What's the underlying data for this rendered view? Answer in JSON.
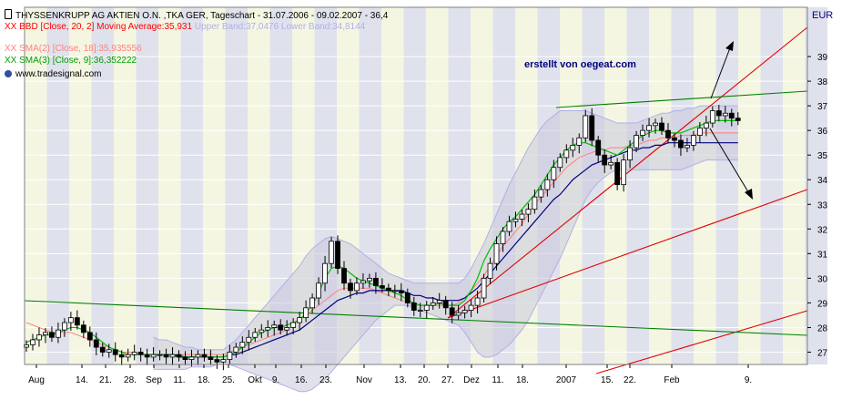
{
  "header": {
    "title": "THYSSENKRUPP AG AKTIEN O.N. ,TKA GER, Tageschart - 31.07.2006 - 09.02.2007 - 36,4",
    "bbd_label": "XX BBD [Close, 20, 2] Moving Average:35,931",
    "bbd_bands": "Upper Band:37,0476 Lower Band:34,8144",
    "sma2_label": "XX SMA(2) [Close, 18]:35,935556",
    "sma3_label": "XX SMA(3) [Close, 9]:36,352222",
    "source": "www.tradesignal.com",
    "currency": "EUR",
    "watermark": "erstellt von oegeat.com"
  },
  "colors": {
    "bbd": "#ff0000",
    "bbd_bands": "#b0b0e8",
    "sma2": "#ff8080",
    "sma3": "#00c000",
    "ma": "#000080",
    "watermark": "#000080",
    "trend_red": "#e00000",
    "trend_green": "#008000",
    "candle_up": "#ffffff",
    "candle_down": "#000000",
    "band_fill": "#c8c8dc",
    "stripe_a": "#dfe1ec",
    "stripe_b": "#f4f6e2"
  },
  "chart_data": {
    "type": "candlestick",
    "title": "THYSSENKRUPP AG AKTIEN O.N. ,TKA GER, Tageschart - 31.07.2006 - 09.02.2007 - 36,4",
    "ylabel": "EUR",
    "ylim": [
      26.5,
      41
    ],
    "y_ticks": [
      27,
      28,
      29,
      30,
      31,
      32,
      33,
      34,
      35,
      36,
      37,
      38,
      39
    ],
    "x_ticks": [
      "Aug",
      "14.",
      "21.",
      "28.",
      "Sep",
      "11.",
      "18.",
      "25.",
      "Okt",
      "9.",
      "16.",
      "23.",
      "Nov",
      "13.",
      "20.",
      "27.",
      "Dez",
      "11.",
      "18.",
      "2007",
      "15.",
      "22.",
      "Feb",
      "9."
    ],
    "close": [
      27.3,
      27.5,
      27.7,
      27.8,
      27.6,
      27.9,
      28.2,
      28.4,
      28.1,
      27.8,
      27.5,
      27.2,
      27.0,
      27.1,
      26.9,
      26.8,
      26.9,
      27.0,
      26.9,
      26.8,
      26.9,
      26.9,
      26.8,
      26.9,
      26.8,
      26.7,
      26.8,
      26.9,
      26.8,
      26.7,
      26.6,
      26.7,
      27.0,
      27.2,
      27.4,
      27.6,
      27.8,
      27.9,
      28.0,
      28.1,
      27.9,
      28.0,
      28.2,
      28.4,
      28.8,
      29.2,
      29.8,
      30.6,
      31.5,
      30.4,
      29.8,
      29.5,
      29.8,
      29.9,
      30.0,
      29.7,
      29.6,
      29.5,
      29.5,
      29.4,
      29.0,
      28.7,
      28.7,
      28.9,
      29.0,
      29.1,
      28.8,
      28.5,
      28.6,
      28.7,
      28.9,
      29.2,
      30.0,
      30.6,
      31.4,
      31.9,
      32.3,
      32.4,
      32.6,
      32.8,
      33.3,
      33.6,
      34.0,
      34.5,
      34.9,
      35.2,
      35.4,
      35.7,
      36.6,
      35.6,
      35.0,
      34.6,
      34.7,
      33.8,
      34.8,
      35.3,
      35.8,
      36.0,
      36.2,
      36.3,
      36.0,
      35.7,
      35.6,
      35.3,
      35.4,
      35.8,
      36.1,
      36.3,
      36.8,
      36.6,
      36.7,
      36.5,
      36.4
    ],
    "sma2": [
      28.2,
      28.1,
      28.0,
      27.9,
      27.8,
      27.8,
      27.8,
      27.8,
      27.7,
      27.6,
      27.5,
      27.4,
      27.3,
      27.2,
      27.1,
      27.0,
      27.0,
      27.0,
      26.9,
      26.9,
      26.9,
      26.9,
      26.9,
      26.9,
      26.9,
      26.9,
      26.9,
      26.9,
      26.9,
      26.9,
      26.9,
      26.9,
      27.0,
      27.1,
      27.2,
      27.3,
      27.4,
      27.5,
      27.6,
      27.7,
      27.8,
      27.9,
      28.1,
      28.3,
      28.5,
      28.7,
      28.9,
      29.1,
      29.3,
      29.5,
      29.6,
      29.6,
      29.6,
      29.6,
      29.6,
      29.5,
      29.4,
      29.3,
      29.2,
      29.1,
      29.0,
      28.9,
      28.9,
      28.9,
      28.9,
      28.9,
      28.9,
      28.9,
      29.0,
      29.2,
      29.5,
      29.8,
      30.1,
      30.5,
      30.9,
      31.3,
      31.6,
      31.9,
      32.2,
      32.6,
      33.0,
      33.3,
      33.6,
      33.9,
      34.2,
      34.5,
      34.7,
      34.9,
      35.0,
      35.1,
      35.2,
      35.2,
      35.3,
      35.3,
      35.3,
      35.4,
      35.4,
      35.5,
      35.6,
      35.6,
      35.7,
      35.7,
      35.7,
      35.8,
      35.8,
      35.8,
      35.9,
      35.9,
      35.9,
      35.9,
      35.9,
      35.9,
      35.9
    ],
    "sma3": [
      27.4,
      27.5,
      27.6,
      27.7,
      27.7,
      27.8,
      27.9,
      28.0,
      28.0,
      27.9,
      27.8,
      27.6,
      27.4,
      27.2,
      27.1,
      27.0,
      26.9,
      26.9,
      26.9,
      26.9,
      26.9,
      26.9,
      26.9,
      26.9,
      26.9,
      26.8,
      26.8,
      26.8,
      26.8,
      26.8,
      26.8,
      26.8,
      26.9,
      27.0,
      27.2,
      27.4,
      27.6,
      27.8,
      27.9,
      28.0,
      28.0,
      28.1,
      28.2,
      28.3,
      28.6,
      28.9,
      29.4,
      30.0,
      30.4,
      30.5,
      30.4,
      30.2,
      30.0,
      29.9,
      29.8,
      29.7,
      29.6,
      29.5,
      29.4,
      29.3,
      29.1,
      29.0,
      28.9,
      28.9,
      28.9,
      29.0,
      28.9,
      28.9,
      28.9,
      29.1,
      29.5,
      30.0,
      30.7,
      31.2,
      31.6,
      32.0,
      32.3,
      32.5,
      32.8,
      33.1,
      33.4,
      33.8,
      34.2,
      34.6,
      34.9,
      35.2,
      35.4,
      35.5,
      35.5,
      35.4,
      35.3,
      35.2,
      35.1,
      35.0,
      35.2,
      35.4,
      35.6,
      35.8,
      35.9,
      36.0,
      36.0,
      35.9,
      35.9,
      35.9,
      36.0,
      36.1,
      36.2,
      36.3,
      36.4,
      36.4,
      36.4,
      36.4,
      36.4
    ],
    "ma": [
      null,
      null,
      null,
      null,
      null,
      null,
      null,
      null,
      null,
      null,
      null,
      null,
      null,
      null,
      null,
      null,
      null,
      null,
      null,
      null,
      26.9,
      26.9,
      26.9,
      26.9,
      26.8,
      26.8,
      26.8,
      26.8,
      26.8,
      26.8,
      26.8,
      26.8,
      26.9,
      26.9,
      27.0,
      27.1,
      27.2,
      27.3,
      27.4,
      27.5,
      27.6,
      27.7,
      27.8,
      27.9,
      28.1,
      28.3,
      28.5,
      28.7,
      28.9,
      29.1,
      29.2,
      29.3,
      29.4,
      29.4,
      29.5,
      29.5,
      29.5,
      29.5,
      29.5,
      29.5,
      29.4,
      29.3,
      29.3,
      29.2,
      29.2,
      29.1,
      29.1,
      29.1,
      29.1,
      29.2,
      29.4,
      29.6,
      29.9,
      30.2,
      30.5,
      30.8,
      31.1,
      31.4,
      31.7,
      32.0,
      32.3,
      32.6,
      32.9,
      33.2,
      33.4,
      33.7,
      34.0,
      34.2,
      34.4,
      34.6,
      34.7,
      34.8,
      34.9,
      35.0,
      35.1,
      35.2,
      35.2,
      35.3,
      35.3,
      35.4,
      35.4,
      35.5,
      35.5,
      35.5,
      35.5,
      35.5,
      35.5,
      35.5,
      35.5,
      35.5,
      35.5,
      35.5,
      35.5
    ],
    "upper_band": [
      null,
      null,
      null,
      null,
      null,
      null,
      null,
      null,
      null,
      null,
      null,
      null,
      null,
      null,
      null,
      null,
      null,
      null,
      null,
      null,
      27.6,
      27.5,
      27.5,
      27.4,
      27.3,
      27.2,
      27.2,
      27.1,
      27.1,
      27.1,
      27.1,
      27.1,
      27.3,
      27.5,
      27.8,
      28.1,
      28.4,
      28.7,
      29.0,
      29.3,
      29.6,
      29.9,
      30.2,
      30.5,
      30.9,
      31.2,
      31.4,
      31.6,
      31.7,
      31.6,
      31.5,
      31.4,
      31.2,
      31.0,
      30.8,
      30.6,
      30.4,
      30.2,
      30.1,
      30.0,
      29.9,
      29.8,
      29.8,
      29.8,
      29.8,
      29.8,
      29.8,
      29.8,
      29.8,
      30.0,
      30.4,
      30.9,
      31.4,
      32.0,
      32.6,
      33.2,
      33.8,
      34.3,
      34.8,
      35.3,
      35.7,
      36.1,
      36.4,
      36.6,
      36.8,
      36.8,
      36.8,
      36.8,
      36.8,
      36.7,
      36.6,
      36.5,
      36.4,
      36.3,
      36.3,
      36.3,
      36.3,
      36.4,
      36.5,
      36.6,
      36.7,
      36.7,
      36.8,
      36.8,
      36.9,
      36.9,
      37.0,
      37.0,
      37.0,
      37.0,
      37.0,
      37.0,
      37.0
    ],
    "lower_band": [
      null,
      null,
      null,
      null,
      null,
      null,
      null,
      null,
      null,
      null,
      null,
      null,
      null,
      null,
      null,
      null,
      null,
      null,
      null,
      null,
      26.3,
      26.3,
      26.3,
      26.3,
      26.3,
      26.3,
      26.4,
      26.4,
      26.4,
      26.4,
      26.5,
      26.5,
      26.5,
      26.4,
      26.3,
      26.2,
      26.1,
      26.0,
      25.9,
      25.8,
      25.7,
      25.6,
      25.5,
      25.4,
      25.4,
      25.5,
      25.7,
      25.9,
      26.2,
      26.5,
      26.8,
      27.1,
      27.4,
      27.7,
      28.0,
      28.3,
      28.5,
      28.7,
      28.9,
      28.9,
      28.9,
      28.8,
      28.7,
      28.6,
      28.5,
      28.4,
      28.3,
      28.2,
      28.1,
      27.8,
      27.4,
      27.0,
      26.8,
      26.8,
      26.9,
      27.1,
      27.3,
      27.6,
      27.9,
      28.3,
      28.8,
      29.3,
      29.8,
      30.3,
      30.8,
      31.4,
      32.0,
      32.6,
      33.2,
      33.6,
      33.9,
      34.1,
      34.3,
      34.4,
      34.4,
      34.4,
      34.4,
      34.4,
      34.4,
      34.4,
      34.4,
      34.4,
      34.4,
      34.4,
      34.5,
      34.6,
      34.7,
      34.8,
      34.8,
      34.8,
      34.8,
      34.8,
      34.8
    ]
  }
}
